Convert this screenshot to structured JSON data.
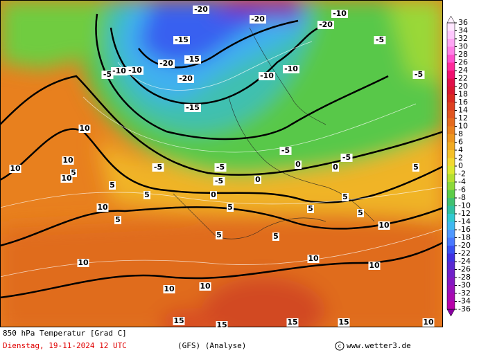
{
  "map": {
    "contour_labels": [
      -20,
      -20,
      -15,
      -10,
      -20,
      -20,
      -10,
      -5,
      -5,
      -5,
      -15,
      -10,
      -20,
      -15,
      -10,
      -10,
      -5,
      -5,
      -5,
      -5,
      -5,
      0,
      0,
      0,
      0,
      5,
      5,
      5,
      5,
      5,
      5,
      5,
      5,
      5,
      5,
      5,
      10,
      10,
      10,
      10,
      10,
      10,
      10,
      10,
      10,
      10,
      10,
      15,
      15,
      15,
      15,
      10
    ]
  },
  "colorbar": {
    "ticks": [
      36,
      34,
      32,
      30,
      28,
      26,
      24,
      22,
      20,
      18,
      16,
      14,
      12,
      10,
      8,
      6,
      4,
      2,
      0,
      -2,
      -4,
      -6,
      -8,
      -10,
      -12,
      -14,
      -16,
      -18,
      -20,
      -22,
      -24,
      -26,
      -28,
      -30,
      -32,
      -34,
      -36
    ],
    "colors": [
      "#ffe6ff",
      "#ffc8ff",
      "#ffa6f4",
      "#ff80e6",
      "#ff50cc",
      "#ff2a9a",
      "#f01070",
      "#e0104a",
      "#d81830",
      "#d82a20",
      "#dc4020",
      "#e05520",
      "#e46a1e",
      "#e8801e",
      "#ec951e",
      "#f0aa22",
      "#f4c028",
      "#f2d830",
      "#dce830",
      "#b4e030",
      "#8cd838",
      "#5ccc48",
      "#40c070",
      "#30c0a0",
      "#30c8d0",
      "#40b8f0",
      "#5098ff",
      "#4878ff",
      "#3850f0",
      "#4030e0",
      "#5828d0",
      "#7020c8",
      "#8418c0",
      "#9810b8",
      "#a808b0",
      "#b800a8"
    ],
    "over_color": "#fff0ff",
    "under_color": "#8800a0"
  },
  "footer": {
    "title": "850 hPa Temperatur [Grad C]",
    "date": "Dienstag, 19-11-2024  12 UTC",
    "model": "(GFS)  (Analyse)",
    "copyright": "www.wetter3.de"
  }
}
